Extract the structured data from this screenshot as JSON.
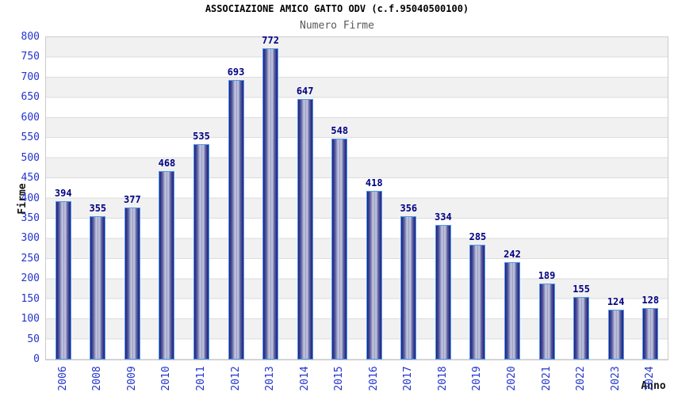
{
  "chart_data": {
    "type": "bar",
    "title": "ASSOCIAZIONE AMICO GATTO ODV (c.f.95040500100)",
    "subtitle": "Numero Firme",
    "xlabel": "Anno",
    "ylabel": "Firme",
    "categories": [
      "2006",
      "2008",
      "2009",
      "2010",
      "2011",
      "2012",
      "2013",
      "2014",
      "2015",
      "2016",
      "2017",
      "2018",
      "2019",
      "2020",
      "2021",
      "2022",
      "2023",
      "2024"
    ],
    "values": [
      394,
      355,
      377,
      468,
      535,
      693,
      772,
      647,
      548,
      418,
      356,
      334,
      285,
      242,
      189,
      155,
      124,
      128
    ],
    "ylim": [
      0,
      800
    ],
    "ytick_step": 50,
    "grid": "horizontal gridlines every 50 with alternating gray/white bands",
    "legend": "none",
    "value_labels": "above each bar",
    "colors": {
      "bar_dark": "#1f1f7b",
      "bar_highlight": "#c9ccdf",
      "bar_mid": "#9aa0c8",
      "bar_border": "#4e9af0",
      "tick_label": "#2334cc",
      "value_label": "#000082",
      "title_color": "#000000",
      "subtitle_color": "#595959",
      "axis_title_color": "#141414",
      "band_gray": "#f1f1f1",
      "band_white": "#ffffff",
      "grid_line": "#dcdcdc",
      "plot_border": "#cbcbcb",
      "background": "#ffffff"
    }
  }
}
